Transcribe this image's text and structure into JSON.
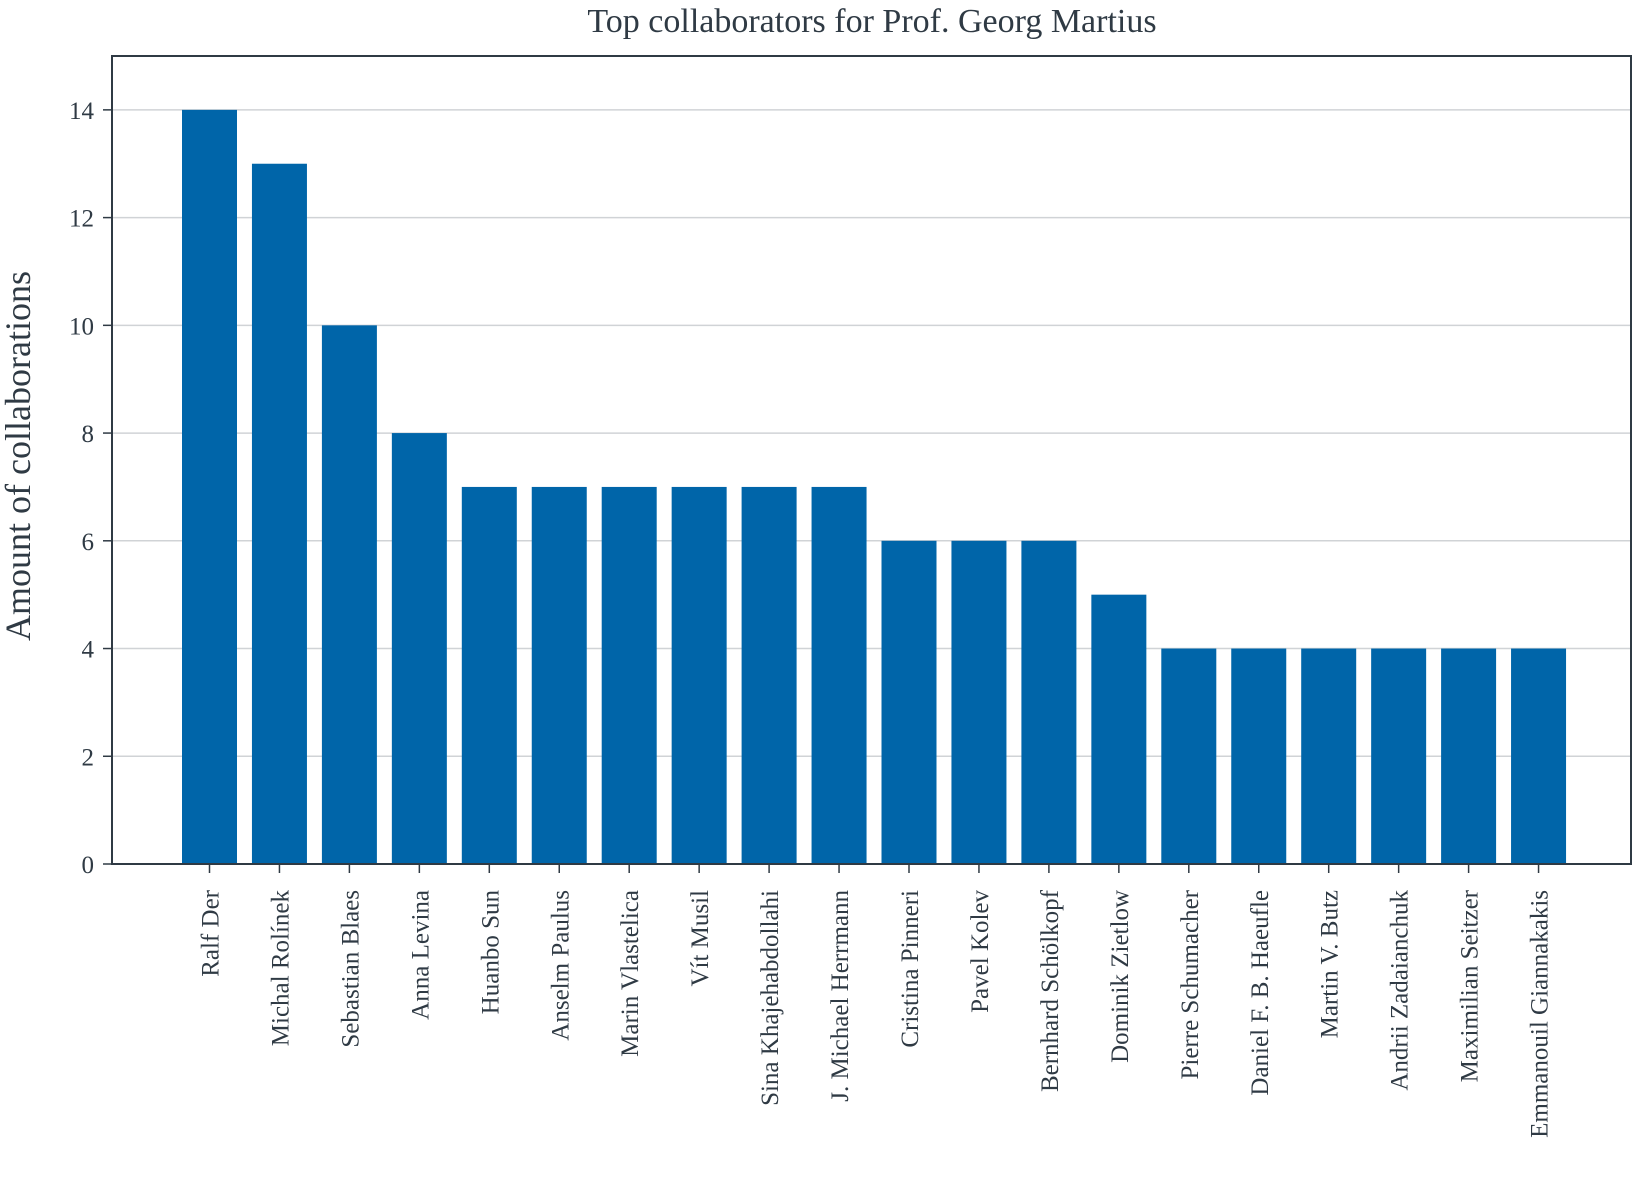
{
  "chart_data": {
    "type": "bar",
    "title": "Top collaborators for Prof. Georg Martius",
    "xlabel": "",
    "ylabel": "Amount of collaborations",
    "ylim": [
      0,
      15
    ],
    "yticks": [
      0,
      2,
      4,
      6,
      8,
      10,
      12,
      14
    ],
    "grid": "horizontal",
    "categories": [
      "Ralf Der",
      "Michal Rolínek",
      "Sebastian Blaes",
      "Anna Levina",
      "Huanbo Sun",
      "Anselm Paulus",
      "Marin Vlastelica",
      "Vít Musil",
      "Sina Khajehabdollahi",
      "J. Michael Herrmann",
      "Cristina Pinneri",
      "Pavel Kolev",
      "Bernhard Schölkopf",
      "Dominik Zietlow",
      "Pierre Schumacher",
      "Daniel F. B. Haeufle",
      "Martin V. Butz",
      "Andrii Zadaianchuk",
      "Maximilian Seitzer",
      "Emmanouil Giannakakis"
    ],
    "values": [
      14,
      13,
      10,
      8,
      7,
      7,
      7,
      7,
      7,
      7,
      6,
      6,
      6,
      5,
      4,
      4,
      4,
      4,
      4,
      4
    ],
    "colors": {
      "bar": "#0065a9",
      "text": "#2f3a44",
      "axis": "#2f3a44",
      "grid": "#d0d3d6"
    }
  }
}
